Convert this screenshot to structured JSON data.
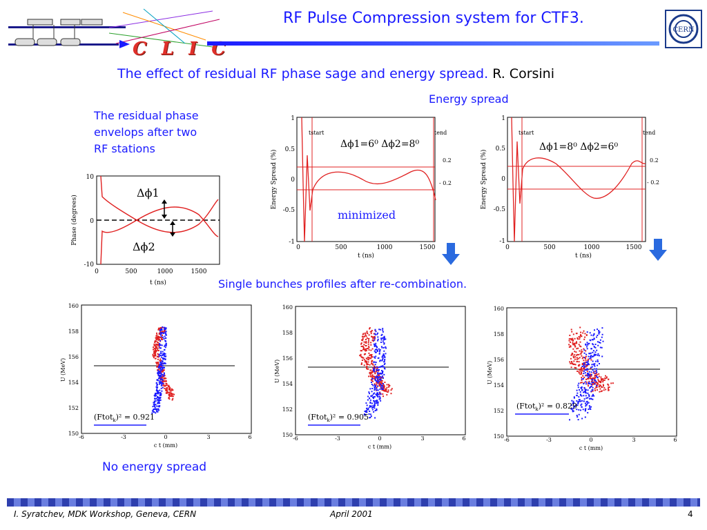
{
  "header": {
    "title": "RF Pulse Compression system for CTF3.",
    "logo_text": "C L I C",
    "cern_label": "CERN"
  },
  "subtitle": {
    "text": "The effect of residual RF phase sage and energy spread.",
    "author": "R. Corsini"
  },
  "labels": {
    "energy_spread": "Energy spread",
    "residual_phase": [
      "The residual phase",
      "envelops after two",
      "RF stations"
    ],
    "minimized": "minimized",
    "single_bunches": "Single bunches profiles after re-combination.",
    "no_energy_spread": "No energy spread"
  },
  "footer": {
    "left": "I. Syratchev, MDK Workshop, Geneva, CERN",
    "center": "April 2001",
    "page": "4"
  },
  "colors": {
    "accent_blue": "#1a1aff",
    "curve_red": "#e02020",
    "arrow_blue": "#2a6adf"
  },
  "chart_data": [
    {
      "type": "line",
      "title": "",
      "xlabel": "t (ns)",
      "ylabel": "Phase (degrees)",
      "xlim": [
        0,
        1800
      ],
      "ylim": [
        -10,
        10
      ],
      "xticks": [
        "0",
        "500",
        "1000",
        "1500"
      ],
      "yticks": [
        "10",
        "0",
        "-10"
      ],
      "annotations": [
        "Δϕ1",
        "Δϕ2"
      ]
    },
    {
      "type": "line",
      "xlabel": "t (ns)",
      "ylabel": "Energy Spread (%)",
      "xlim": [
        0,
        1700
      ],
      "ylim": [
        -1,
        1
      ],
      "xticks": [
        "0",
        "500",
        "1000",
        "1500"
      ],
      "yticks": [
        "1",
        "0.5",
        "0",
        "-0.5",
        "-1"
      ],
      "annotations": [
        "tstart",
        "tend",
        "0.2",
        "- 0.2"
      ],
      "legend_text": "Δϕ1=6⁰  Δϕ2=8⁰"
    },
    {
      "type": "line",
      "xlabel": "t (ns)",
      "ylabel": "Energy Spread (%)",
      "xlim": [
        0,
        1700
      ],
      "ylim": [
        -1,
        1
      ],
      "xticks": [
        "0",
        "500",
        "1000",
        "1500"
      ],
      "yticks": [
        "1",
        "0.5",
        "0",
        "-0.5",
        "-1"
      ],
      "annotations": [
        "tstart",
        "tend",
        "0.2",
        "- 0.2"
      ],
      "legend_text": "Δϕ1=8⁰  Δϕ2=6⁰"
    },
    {
      "type": "scatter",
      "xlabel": "c t (mm)",
      "ylabel": "U (MeV)",
      "xlim": [
        -6,
        6
      ],
      "ylim": [
        150,
        160
      ],
      "xticks": [
        "-6",
        "-3",
        "0",
        "3",
        "6"
      ],
      "yticks": [
        "160",
        "158",
        "156",
        "154",
        "152",
        "150"
      ],
      "formula": "(Ftot",
      "formula_sub": "k",
      "formula_value": ")² = 0.921",
      "series": [
        {
          "name": "",
          "color": "red"
        },
        {
          "name": "",
          "color": "blue"
        }
      ]
    },
    {
      "type": "scatter",
      "xlabel": "c t (mm)",
      "ylabel": "U (MeV)",
      "xlim": [
        -6,
        6
      ],
      "ylim": [
        150,
        160
      ],
      "xticks": [
        "-6",
        "-3",
        "0",
        "3",
        "6"
      ],
      "yticks": [
        "160",
        "158",
        "156",
        "154",
        "152",
        "150"
      ],
      "formula": "(Ftot",
      "formula_sub": "k",
      "formula_value": ")² = 0.905",
      "series": [
        {
          "name": "",
          "color": "red"
        },
        {
          "name": "",
          "color": "blue"
        }
      ]
    },
    {
      "type": "scatter",
      "xlabel": "c t (mm)",
      "ylabel": "U (MeV)",
      "xlim": [
        -6,
        6
      ],
      "ylim": [
        150,
        160
      ],
      "xticks": [
        "-6",
        "-3",
        "0",
        "3",
        "6"
      ],
      "yticks": [
        "160",
        "158",
        "156",
        "154",
        "152",
        "150"
      ],
      "formula": "(Ftot",
      "formula_sub": "k",
      "formula_value": ")² = 0.829",
      "series": [
        {
          "name": "",
          "color": "red"
        },
        {
          "name": "",
          "color": "blue"
        }
      ]
    }
  ]
}
